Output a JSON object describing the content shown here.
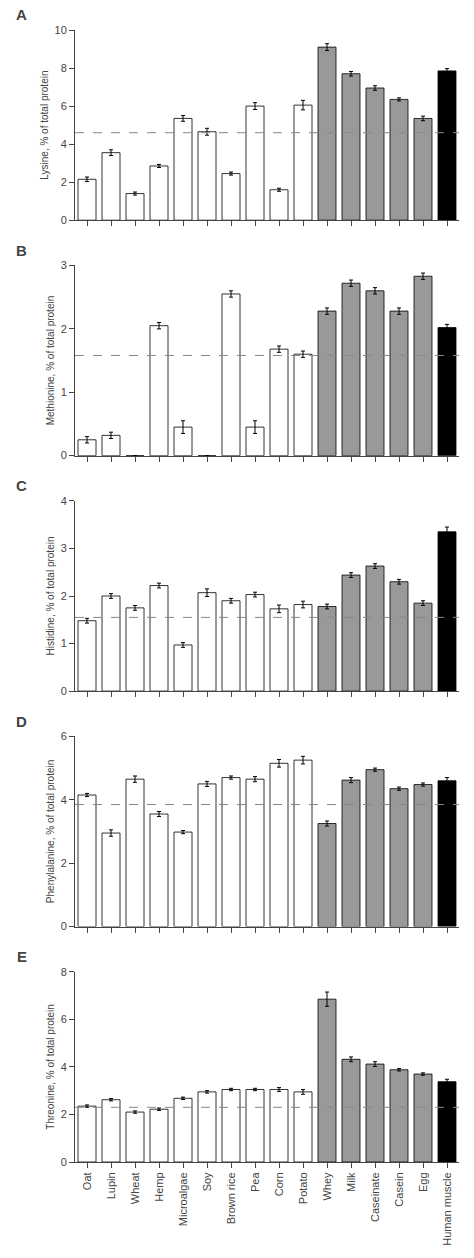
{
  "chart_data": [
    {
      "type": "bar",
      "title": "A",
      "ylabel": "Lysine, % of total protein",
      "categories": [
        "Oat",
        "Lupin",
        "Wheat",
        "Hemp",
        "Microalgae",
        "Soy",
        "Brown rice",
        "Pea",
        "Corn",
        "Potato",
        "Whey",
        "Milk",
        "Caseinate",
        "Casein",
        "Egg",
        "Human muscle"
      ],
      "values": [
        2.15,
        3.55,
        1.4,
        2.85,
        5.35,
        4.65,
        2.45,
        6.0,
        1.6,
        6.05,
        9.1,
        7.7,
        6.95,
        6.35,
        5.35,
        7.85
      ],
      "errors": [
        0.12,
        0.15,
        0.08,
        0.08,
        0.15,
        0.18,
        0.08,
        0.18,
        0.08,
        0.25,
        0.18,
        0.12,
        0.12,
        0.08,
        0.12,
        0.12
      ],
      "colors": [
        "white",
        "white",
        "white",
        "white",
        "white",
        "white",
        "white",
        "white",
        "white",
        "white",
        "#999999",
        "#999999",
        "#999999",
        "#999999",
        "#999999",
        "black"
      ],
      "reference_line": {
        "value": 4.6,
        "color": "#888888",
        "line_style": "dashed"
      },
      "ylim": [
        0,
        10
      ],
      "yticks": [
        0,
        2,
        4,
        6,
        8,
        10
      ],
      "grid": false,
      "tick_labels": "y"
    },
    {
      "type": "bar",
      "title": "B",
      "ylabel": "Methionine, % of total protein",
      "categories": [
        "Oat",
        "Lupin",
        "Wheat",
        "Hemp",
        "Microalgae",
        "Soy",
        "Brown rice",
        "Pea",
        "Corn",
        "Potato",
        "Whey",
        "Milk",
        "Caseinate",
        "Casein",
        "Egg",
        "Human muscle"
      ],
      "values": [
        0.25,
        0.32,
        0.0,
        2.05,
        0.45,
        0.0,
        2.55,
        0.45,
        1.68,
        1.6,
        2.28,
        2.72,
        2.6,
        2.28,
        2.83,
        2.02
      ],
      "errors": [
        0.05,
        0.05,
        0.0,
        0.05,
        0.1,
        0.0,
        0.05,
        0.1,
        0.05,
        0.05,
        0.05,
        0.05,
        0.05,
        0.05,
        0.05,
        0.05
      ],
      "colors": [
        "white",
        "white",
        "white",
        "white",
        "white",
        "white",
        "white",
        "white",
        "white",
        "white",
        "#999999",
        "#999999",
        "#999999",
        "#999999",
        "#999999",
        "black"
      ],
      "reference_line": {
        "value": 1.58,
        "color": "#888888",
        "line_style": "dashed"
      },
      "ylim": [
        0,
        3
      ],
      "yticks": [
        0,
        1,
        2,
        3
      ],
      "grid": false,
      "tick_labels": "y"
    },
    {
      "type": "bar",
      "title": "C",
      "ylabel": "Histidine, % of total protein",
      "categories": [
        "Oat",
        "Lupin",
        "Wheat",
        "Hemp",
        "Microalgae",
        "Soy",
        "Brown rice",
        "Pea",
        "Corn",
        "Potato",
        "Whey",
        "Milk",
        "Caseinate",
        "Casein",
        "Egg",
        "Human muscle"
      ],
      "values": [
        1.48,
        2.0,
        1.75,
        2.22,
        0.97,
        2.07,
        1.9,
        2.03,
        1.73,
        1.82,
        1.78,
        2.44,
        2.63,
        2.3,
        1.85,
        3.35
      ],
      "errors": [
        0.05,
        0.05,
        0.05,
        0.05,
        0.05,
        0.08,
        0.05,
        0.05,
        0.08,
        0.07,
        0.05,
        0.05,
        0.05,
        0.05,
        0.05,
        0.1
      ],
      "colors": [
        "white",
        "white",
        "white",
        "white",
        "white",
        "white",
        "white",
        "white",
        "white",
        "white",
        "#999999",
        "#999999",
        "#999999",
        "#999999",
        "#999999",
        "black"
      ],
      "reference_line": {
        "value": 1.55,
        "color": "#888888",
        "line_style": "dashed"
      },
      "ylim": [
        0,
        4
      ],
      "yticks": [
        0,
        1,
        2,
        3,
        4
      ],
      "grid": false,
      "tick_labels": "y"
    },
    {
      "type": "bar",
      "title": "D",
      "ylabel": "Phenylalanine, % of total protein",
      "categories": [
        "Oat",
        "Lupin",
        "Wheat",
        "Hemp",
        "Microalgae",
        "Soy",
        "Brown rice",
        "Pea",
        "Corn",
        "Potato",
        "Whey",
        "Milk",
        "Caseinate",
        "Casein",
        "Egg",
        "Human muscle"
      ],
      "values": [
        4.15,
        2.95,
        4.65,
        3.55,
        2.98,
        4.5,
        4.7,
        4.65,
        5.15,
        5.25,
        3.25,
        4.62,
        4.95,
        4.35,
        4.48,
        4.6
      ],
      "errors": [
        0.05,
        0.1,
        0.1,
        0.08,
        0.05,
        0.08,
        0.05,
        0.08,
        0.12,
        0.12,
        0.08,
        0.08,
        0.05,
        0.05,
        0.05,
        0.1
      ],
      "colors": [
        "white",
        "white",
        "white",
        "white",
        "white",
        "white",
        "white",
        "white",
        "white",
        "white",
        "#999999",
        "#999999",
        "#999999",
        "#999999",
        "#999999",
        "black"
      ],
      "reference_line": {
        "value": 3.85,
        "color": "#888888",
        "line_style": "dashed"
      },
      "ylim": [
        0,
        6
      ],
      "yticks": [
        0,
        2,
        4,
        6
      ],
      "grid": false,
      "tick_labels": "y"
    },
    {
      "type": "bar",
      "title": "E",
      "ylabel": "Threonine, % of total protein",
      "categories": [
        "Oat",
        "Lupin",
        "Wheat",
        "Hemp",
        "Microalgae",
        "Soy",
        "Brown rice",
        "Pea",
        "Corn",
        "Potato",
        "Whey",
        "Milk",
        "Caseinate",
        "Casein",
        "Egg",
        "Human muscle"
      ],
      "values": [
        2.35,
        2.62,
        2.1,
        2.22,
        2.68,
        2.95,
        3.05,
        3.05,
        3.05,
        2.95,
        6.85,
        4.32,
        4.12,
        3.88,
        3.7,
        3.38
      ],
      "errors": [
        0.05,
        0.05,
        0.05,
        0.05,
        0.05,
        0.05,
        0.05,
        0.05,
        0.08,
        0.1,
        0.3,
        0.1,
        0.1,
        0.05,
        0.05,
        0.1
      ],
      "colors": [
        "white",
        "white",
        "white",
        "white",
        "white",
        "white",
        "white",
        "white",
        "white",
        "white",
        "#999999",
        "#999999",
        "#999999",
        "#999999",
        "#999999",
        "black"
      ],
      "reference_line": {
        "value": 2.3,
        "color": "#888888",
        "line_style": "dashed"
      },
      "ylim": [
        0,
        8
      ],
      "yticks": [
        0,
        2,
        4,
        6,
        8
      ],
      "grid": false
    }
  ]
}
